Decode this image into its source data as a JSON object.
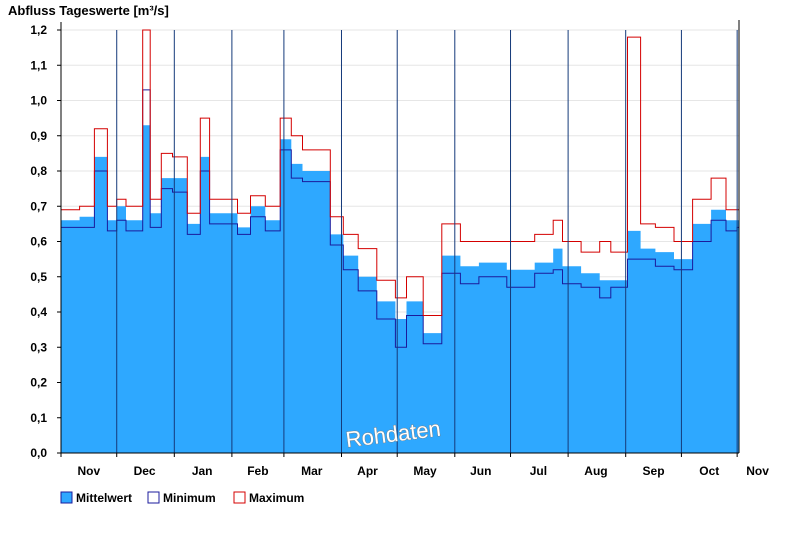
{
  "chart_data": {
    "type": "area",
    "title": "Abfluss Tageswerte [m³/s]",
    "ylim": [
      0,
      1.2
    ],
    "yticks": [
      "0,0",
      "0,1",
      "0,2",
      "0,3",
      "0,4",
      "0,5",
      "0,6",
      "0,7",
      "0,8",
      "0,9",
      "1,0",
      "1,1",
      "1,2"
    ],
    "months": [
      "Nov",
      "Dec",
      "Jan",
      "Feb",
      "Mar",
      "Apr",
      "May",
      "Jun",
      "Jul",
      "Aug",
      "Sep",
      "Oct",
      "Nov"
    ],
    "grid": true,
    "legend_position": "bottom-left",
    "watermark": "Rohdaten",
    "series": [
      {
        "name": "Mittelwert",
        "color": "#2ea8ff",
        "days": [
          0,
          10,
          18,
          25,
          30,
          35,
          44,
          48,
          54,
          60,
          68,
          75,
          80,
          85,
          95,
          102,
          110,
          118,
          124,
          130,
          138,
          145,
          152,
          160,
          170,
          180,
          186,
          195,
          205,
          215,
          225,
          240,
          255,
          265,
          270,
          280,
          290,
          296,
          305,
          312,
          320,
          330,
          340,
          350,
          358,
          364
        ],
        "values": [
          0.66,
          0.67,
          0.84,
          0.66,
          0.7,
          0.66,
          0.93,
          0.68,
          0.78,
          0.78,
          0.65,
          0.84,
          0.68,
          0.68,
          0.64,
          0.7,
          0.66,
          0.89,
          0.82,
          0.8,
          0.8,
          0.62,
          0.56,
          0.5,
          0.43,
          0.38,
          0.43,
          0.34,
          0.56,
          0.53,
          0.54,
          0.52,
          0.54,
          0.58,
          0.53,
          0.51,
          0.49,
          0.49,
          0.63,
          0.58,
          0.57,
          0.55,
          0.65,
          0.69,
          0.66,
          0.66
        ]
      },
      {
        "name": "Minimum",
        "color": "#1b1b9c",
        "days": [
          0,
          10,
          18,
          25,
          30,
          35,
          44,
          48,
          54,
          60,
          68,
          75,
          80,
          85,
          95,
          102,
          110,
          118,
          124,
          130,
          138,
          145,
          152,
          160,
          170,
          180,
          186,
          195,
          205,
          215,
          225,
          240,
          255,
          265,
          270,
          280,
          290,
          296,
          305,
          312,
          320,
          330,
          340,
          350,
          358,
          364
        ],
        "values": [
          0.64,
          0.64,
          0.8,
          0.63,
          0.66,
          0.63,
          1.03,
          0.64,
          0.75,
          0.74,
          0.62,
          0.8,
          0.65,
          0.65,
          0.62,
          0.67,
          0.63,
          0.86,
          0.78,
          0.77,
          0.77,
          0.59,
          0.52,
          0.46,
          0.38,
          0.3,
          0.39,
          0.31,
          0.51,
          0.48,
          0.5,
          0.47,
          0.51,
          0.52,
          0.48,
          0.47,
          0.44,
          0.47,
          0.55,
          0.55,
          0.53,
          0.52,
          0.6,
          0.66,
          0.63,
          0.64
        ]
      },
      {
        "name": "Maximum",
        "color": "#d40000",
        "days": [
          0,
          10,
          18,
          25,
          30,
          35,
          44,
          48,
          54,
          60,
          68,
          75,
          80,
          85,
          95,
          102,
          110,
          118,
          124,
          130,
          138,
          145,
          152,
          160,
          170,
          180,
          186,
          195,
          205,
          215,
          225,
          240,
          255,
          265,
          270,
          280,
          290,
          296,
          305,
          312,
          320,
          330,
          340,
          350,
          358,
          364
        ],
        "values": [
          0.69,
          0.7,
          0.92,
          0.7,
          0.72,
          0.7,
          1.2,
          0.72,
          0.85,
          0.84,
          0.68,
          0.95,
          0.72,
          0.72,
          0.68,
          0.73,
          0.7,
          0.95,
          0.9,
          0.86,
          0.86,
          0.67,
          0.62,
          0.58,
          0.49,
          0.44,
          0.5,
          0.39,
          0.65,
          0.6,
          0.6,
          0.6,
          0.62,
          0.66,
          0.6,
          0.57,
          0.6,
          0.57,
          1.18,
          0.65,
          0.64,
          0.6,
          0.72,
          0.78,
          0.69,
          0.69
        ]
      }
    ]
  }
}
